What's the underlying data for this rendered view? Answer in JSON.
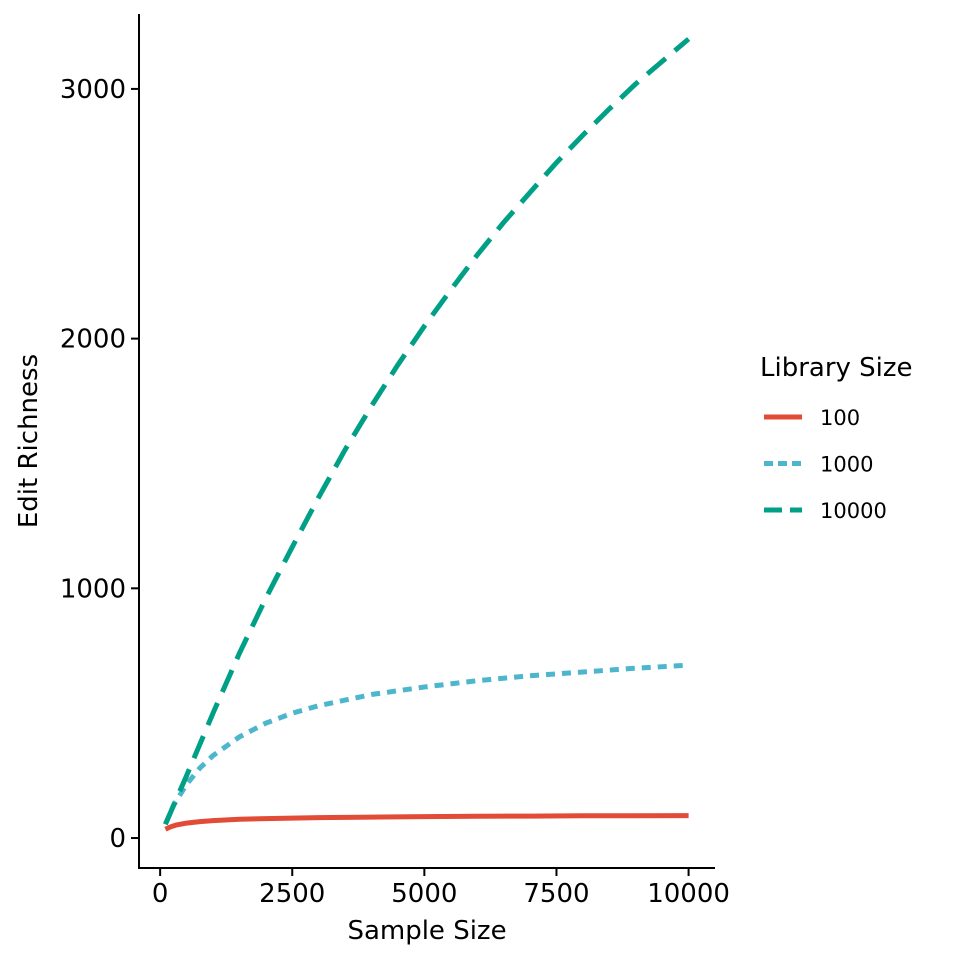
{
  "chart_data": {
    "type": "line",
    "title": "",
    "xlabel": "Sample Size",
    "ylabel": "Edit Richness",
    "xlim": [
      -400,
      10500
    ],
    "ylim": [
      -120,
      3300
    ],
    "x_ticks": [
      0,
      2500,
      5000,
      7500,
      10000
    ],
    "y_ticks": [
      0,
      1000,
      2000,
      3000
    ],
    "grid": false,
    "legend": {
      "title": "Library Size",
      "placement": "right"
    },
    "series": [
      {
        "name": "100",
        "color": "#e24b35",
        "dash": "solid",
        "x": [
          100,
          200,
          300,
          500,
          750,
          1000,
          1500,
          2000,
          2500,
          3000,
          4000,
          5000,
          6000,
          7000,
          8000,
          9000,
          10000
        ],
        "y": [
          35,
          45,
          52,
          60,
          66,
          70,
          75,
          78,
          80,
          82,
          84,
          86,
          87,
          88,
          89,
          89,
          90
        ]
      },
      {
        "name": "1000",
        "color": "#4db5cc",
        "dash": "dotted",
        "x": [
          100,
          250,
          500,
          750,
          1000,
          1500,
          2000,
          2500,
          3000,
          4000,
          5000,
          6000,
          7000,
          8000,
          9000,
          10000
        ],
        "y": [
          55,
          130,
          215,
          280,
          330,
          405,
          460,
          500,
          530,
          575,
          605,
          630,
          650,
          665,
          680,
          692
        ]
      },
      {
        "name": "10000",
        "color": "#00a087",
        "dash": "dashed",
        "x": [
          100,
          500,
          1000,
          1500,
          2000,
          2500,
          3000,
          3500,
          4000,
          4500,
          5000,
          5500,
          6000,
          6500,
          7000,
          7500,
          8000,
          8500,
          9000,
          9500,
          10000
        ],
        "y": [
          55,
          250,
          500,
          740,
          960,
          1165,
          1365,
          1555,
          1730,
          1895,
          2050,
          2195,
          2335,
          2465,
          2585,
          2705,
          2815,
          2920,
          3020,
          3110,
          3200
        ]
      }
    ]
  }
}
